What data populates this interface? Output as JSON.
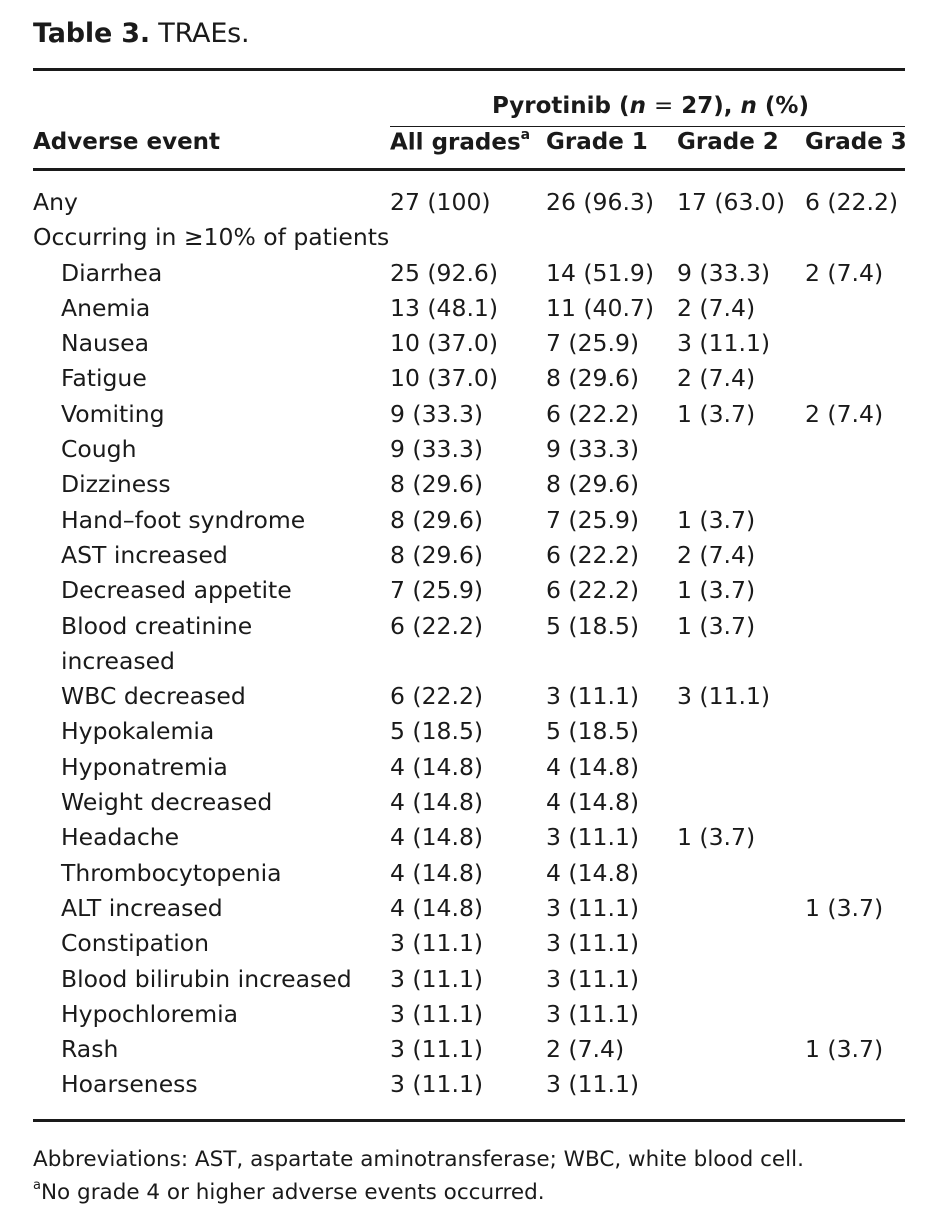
{
  "title": {
    "label": "Table 3.",
    "text": "TRAEs."
  },
  "group_header": {
    "drug": "Pyrotinib",
    "n_symbol": "n",
    "equals": "=",
    "n_value": "27),",
    "n_pct_symbol": "n",
    "pct": "(%)"
  },
  "columns": {
    "adverse_event": "Adverse event",
    "all_grades": "All grades",
    "all_grades_note": "a",
    "grade1": "Grade 1",
    "grade2": "Grade 2",
    "grade3": "Grade 3"
  },
  "rows": [
    {
      "event": "Any",
      "all": "27 (100)",
      "g1": "26 (96.3)",
      "g2": "17 (63.0)",
      "g3": "6 (22.2)"
    },
    {
      "event": "Occurring in ≥10% of patients",
      "all": "",
      "g1": "",
      "g2": "",
      "g3": ""
    },
    {
      "event": "Diarrhea",
      "all": "25 (92.6)",
      "g1": "14 (51.9)",
      "g2": "9 (33.3)",
      "g3": "2 (7.4)"
    },
    {
      "event": "Anemia",
      "all": "13 (48.1)",
      "g1": "11 (40.7)",
      "g2": "2 (7.4)",
      "g3": ""
    },
    {
      "event": "Nausea",
      "all": "10 (37.0)",
      "g1": "7 (25.9)",
      "g2": "3 (11.1)",
      "g3": ""
    },
    {
      "event": "Fatigue",
      "all": "10 (37.0)",
      "g1": "8 (29.6)",
      "g2": "2 (7.4)",
      "g3": ""
    },
    {
      "event": "Vomiting",
      "all": "9 (33.3)",
      "g1": "6 (22.2)",
      "g2": "1 (3.7)",
      "g3": "2 (7.4)"
    },
    {
      "event": "Cough",
      "all": "9 (33.3)",
      "g1": "9 (33.3)",
      "g2": "",
      "g3": ""
    },
    {
      "event": "Dizziness",
      "all": "8 (29.6)",
      "g1": "8 (29.6)",
      "g2": "",
      "g3": ""
    },
    {
      "event": "Hand–foot syndrome",
      "all": "8 (29.6)",
      "g1": "7 (25.9)",
      "g2": "1 (3.7)",
      "g3": ""
    },
    {
      "event": "AST increased",
      "all": "8 (29.6)",
      "g1": "6 (22.2)",
      "g2": "2 (7.4)",
      "g3": ""
    },
    {
      "event": "Decreased appetite",
      "all": "7 (25.9)",
      "g1": "6 (22.2)",
      "g2": "1 (3.7)",
      "g3": ""
    },
    {
      "event": "Blood creatinine",
      "all": "6 (22.2)",
      "g1": "5 (18.5)",
      "g2": "1 (3.7)",
      "g3": ""
    },
    {
      "event": "increased",
      "all": "",
      "g1": "",
      "g2": "",
      "g3": ""
    },
    {
      "event": "WBC decreased",
      "all": "6 (22.2)",
      "g1": "3 (11.1)",
      "g2": "3 (11.1)",
      "g3": ""
    },
    {
      "event": "Hypokalemia",
      "all": "5 (18.5)",
      "g1": "5 (18.5)",
      "g2": "",
      "g3": ""
    },
    {
      "event": "Hyponatremia",
      "all": "4 (14.8)",
      "g1": "4 (14.8)",
      "g2": "",
      "g3": ""
    },
    {
      "event": "Weight decreased",
      "all": "4 (14.8)",
      "g1": "4 (14.8)",
      "g2": "",
      "g3": ""
    },
    {
      "event": "Headache",
      "all": "4 (14.8)",
      "g1": "3 (11.1)",
      "g2": "1 (3.7)",
      "g3": ""
    },
    {
      "event": "Thrombocytopenia",
      "all": "4 (14.8)",
      "g1": "4 (14.8)",
      "g2": "",
      "g3": ""
    },
    {
      "event": "ALT increased",
      "all": "4 (14.8)",
      "g1": "3 (11.1)",
      "g2": "",
      "g3": "1 (3.7)"
    },
    {
      "event": "Constipation",
      "all": "3 (11.1)",
      "g1": "3 (11.1)",
      "g2": "",
      "g3": ""
    },
    {
      "event": "Blood bilirubin increased",
      "all": "3 (11.1)",
      "g1": "3 (11.1)",
      "g2": "",
      "g3": ""
    },
    {
      "event": "Hypochloremia",
      "all": "3 (11.1)",
      "g1": "3 (11.1)",
      "g2": "",
      "g3": ""
    },
    {
      "event": "Rash",
      "all": "3 (11.1)",
      "g1": "2 (7.4)",
      "g2": "",
      "g3": "1 (3.7)"
    },
    {
      "event": "Hoarseness",
      "all": "3 (11.1)",
      "g1": "3 (11.1)",
      "g2": "",
      "g3": ""
    }
  ],
  "footnotes": {
    "abbreviations": "Abbreviations: AST, aspartate aminotransferase; WBC, white blood cell.",
    "note_marker": "a",
    "note_text": "No grade 4 or higher adverse events occurred."
  }
}
